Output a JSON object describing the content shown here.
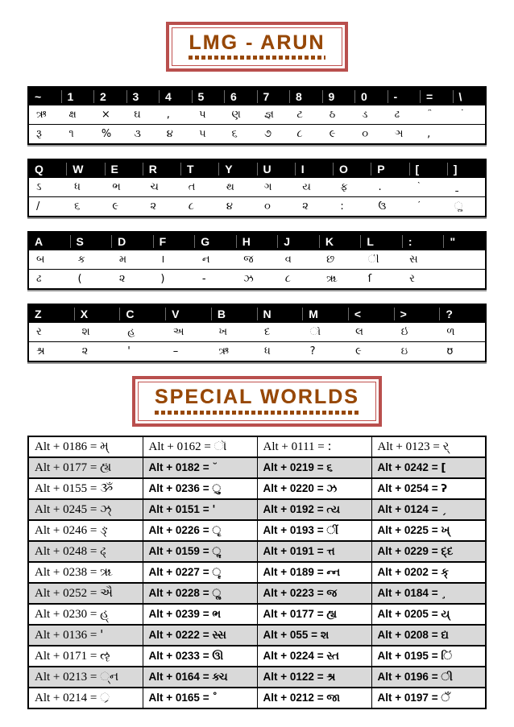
{
  "titles": {
    "font_name": "LMG - ARUN",
    "special": "SPECIAL WORLDS"
  },
  "colors": {
    "box_border": "#c0504d",
    "title_text": "#974807",
    "header_bg": "#000000",
    "header_text": "#ffffff",
    "table_alt_row": "#d9d9d9"
  },
  "keyboard_sections": [
    {
      "keys": [
        "~",
        "1",
        "2",
        "3",
        "4",
        "5",
        "6",
        "7",
        "8",
        "9",
        "0",
        "-",
        "=",
        "\\"
      ],
      "row1": [
        "ઋ",
        "ક્ષ",
        "×",
        "ઘ",
        ",",
        "પ",
        "ણ",
        "જ્ઞ",
        "ટ",
        "ઠ",
        "ડ",
        "ઢ",
        "ˆ",
        "˙"
      ],
      "row2": [
        "રૂ",
        "૧",
        "%",
        "૩",
        "૪",
        "૫",
        "૬",
        "૭",
        "૮",
        "૯",
        "૦",
        "ઞ",
        ",",
        ""
      ]
    },
    {
      "keys": [
        "Q",
        "W",
        "E",
        "R",
        "T",
        "Y",
        "U",
        "I",
        "O",
        "P",
        "[",
        "]"
      ],
      "row1": [
        "ઽ",
        "ધ",
        "ભ",
        "ચ",
        "ત",
        "થ",
        "ગ",
        "ય",
        "ફ",
        ".",
        "ˋ",
        "ˍ"
      ],
      "row2": [
        "/",
        "૬",
        "૯",
        "૨",
        "૮",
        "૪",
        "૦",
        "૨",
        ":",
        "ઉ",
        "ˊ",
        "ૢ"
      ]
    },
    {
      "keys": [
        "A",
        "S",
        "D",
        "F",
        "G",
        "H",
        "J",
        "K",
        "L",
        ":",
        "\""
      ],
      "row1": [
        "બ",
        "ક",
        "મ",
        "।",
        "ન",
        "જ",
        "વ",
        "છ",
        "ી",
        "સ",
        ""
      ],
      "row2": [
        "ઢ",
        "(",
        "૨",
        ")",
        "-",
        "ઝ",
        "૮",
        "ૠ",
        "ſ",
        "ર",
        ""
      ]
    },
    {
      "keys": [
        "Z",
        "X",
        "C",
        "V",
        "B",
        "N",
        "M",
        "<",
        ">",
        "?"
      ],
      "row1": [
        "ર",
        "શ",
        "હ",
        "અ",
        "ખ",
        "દ",
        "ો",
        "લ",
        "ઈ",
        "ળ"
      ],
      "row2": [
        "શ્ર",
        "૨",
        "'",
        "–",
        "ઋ",
        "ધ",
        "?",
        "૯",
        "ઇ",
        "ʊ"
      ]
    }
  ],
  "alt_table": {
    "equals_sign": "=",
    "rows": [
      [
        {
          "code": "Alt + 0186",
          "glyph": "મ્"
        },
        {
          "code": "Alt + 0162",
          "glyph": "ૉ"
        },
        {
          "code": "Alt + 0111",
          "glyph": ":"
        },
        {
          "code": "Alt + 0123",
          "glyph": "ર્"
        }
      ],
      [
        {
          "code": "Alt + 0177",
          "glyph": "હ્ય"
        },
        {
          "code": "Alt + 0182",
          "glyph": "˘"
        },
        {
          "code": "Alt + 0219",
          "glyph": "૬"
        },
        {
          "code": "Alt + 0242",
          "glyph": "["
        }
      ],
      [
        {
          "code": "Alt + 0155",
          "glyph": "ૐ"
        },
        {
          "code": "Alt + 0236",
          "glyph": "ુ"
        },
        {
          "code": "Alt + 0220",
          "glyph": "ઝ"
        },
        {
          "code": "Alt + 0254",
          "glyph": "ʔ"
        }
      ],
      [
        {
          "code": "Alt + 0245",
          "glyph": "ઝ્"
        },
        {
          "code": "Alt + 0151",
          "glyph": "'"
        },
        {
          "code": "Alt + 0192",
          "glyph": "ત્ય"
        },
        {
          "code": "Alt + 0124",
          "glyph": "ˏ"
        }
      ],
      [
        {
          "code": "Alt + 0246",
          "glyph": "ઙ્"
        },
        {
          "code": "Alt + 0226",
          "glyph": "ૃ"
        },
        {
          "code": "Alt + 0193",
          "glyph": "ીં"
        },
        {
          "code": "Alt + 0225",
          "glyph": "ખ્"
        }
      ],
      [
        {
          "code": "Alt + 0248",
          "glyph": "ઢ્"
        },
        {
          "code": "Alt + 0159",
          "glyph": "ૣ"
        },
        {
          "code": "Alt + 0191",
          "glyph": "ત્ત"
        },
        {
          "code": "Alt + 0229",
          "glyph": "દ્દ"
        }
      ],
      [
        {
          "code": "Alt + 0238",
          "glyph": "ૠ"
        },
        {
          "code": "Alt + 0227",
          "glyph": "ૄ"
        },
        {
          "code": "Alt + 0189",
          "glyph": "ન્ન"
        },
        {
          "code": "Alt + 0202",
          "glyph": "ક્"
        }
      ],
      [
        {
          "code": "Alt + 0252",
          "glyph": "ઐ"
        },
        {
          "code": "Alt + 0228",
          "glyph": "ૢ"
        },
        {
          "code": "Alt + 0223",
          "glyph": "જ"
        },
        {
          "code": "Alt + 0184",
          "glyph": "¸"
        }
      ],
      [
        {
          "code": "Alt + 0230",
          "glyph": "હ્"
        },
        {
          "code": "Alt + 0239",
          "glyph": "ભ"
        },
        {
          "code": "Alt + 0177",
          "glyph": "હ્ય"
        },
        {
          "code": "Alt + 0205",
          "glyph": "ય્"
        }
      ],
      [
        {
          "code": "Alt + 0136",
          "glyph": "'"
        },
        {
          "code": "Alt + 0222",
          "glyph": "સ્સ"
        },
        {
          "code": "Alt + 055",
          "glyph": "શ"
        },
        {
          "code": "Alt + 0208",
          "glyph": "દ્ય"
        }
      ],
      [
        {
          "code": "Alt + 0171",
          "glyph": "ૡ"
        },
        {
          "code": "Alt + 0233",
          "glyph": "ઊ"
        },
        {
          "code": "Alt + 0224",
          "glyph": "સ્ત"
        },
        {
          "code": "Alt + 0195",
          "glyph": "િં"
        }
      ],
      [
        {
          "code": "Alt + 0213",
          "glyph": "્ન"
        },
        {
          "code": "Alt + 0164",
          "glyph": "ક્ચ"
        },
        {
          "code": "Alt + 0122",
          "glyph": "શ્ર"
        },
        {
          "code": "Alt + 0196",
          "glyph": "ી"
        }
      ],
      [
        {
          "code": "Alt + 0214",
          "glyph": "્ર"
        },
        {
          "code": "Alt + 0165",
          "glyph": "˚"
        },
        {
          "code": "Alt + 0212",
          "glyph": "જા"
        },
        {
          "code": "Alt + 0197",
          "glyph": "ઁ"
        }
      ]
    ]
  }
}
